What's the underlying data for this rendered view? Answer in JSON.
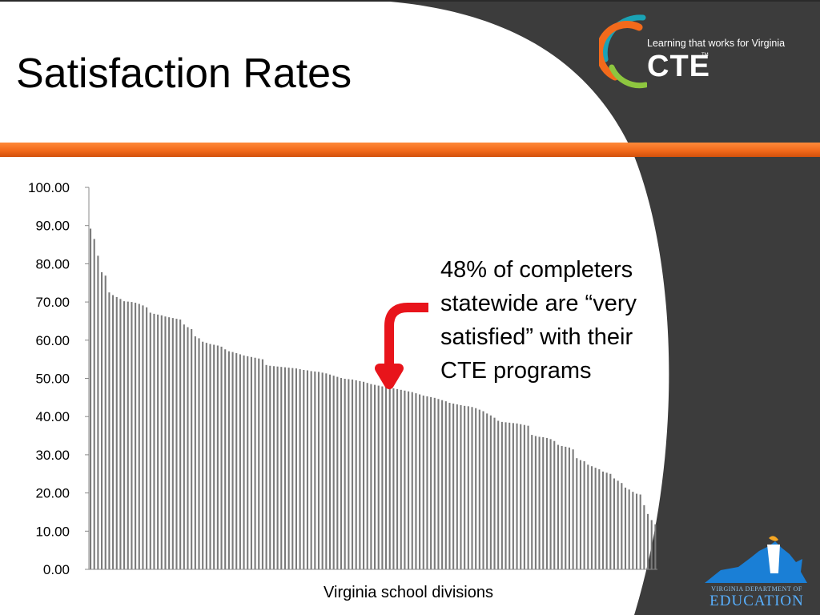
{
  "slide": {
    "title": "Satisfaction Rates",
    "colors": {
      "dark_panel": "#3c3c3c",
      "accent_orange": "#f26a1b",
      "arrow_red": "#e8141b",
      "bar_color": "#7a7a7a"
    }
  },
  "logo": {
    "tagline": "Learning that works for Virginia",
    "wordmark": "CTE",
    "tm": "TM",
    "colors": {
      "teal": "#1aa3b5",
      "orange": "#f26a1b",
      "green": "#8dc63f"
    }
  },
  "annotation": {
    "lines": [
      "48% of completers",
      "statewide are “very",
      "satisfied” with their",
      "CTE programs"
    ]
  },
  "vdoe_logo": {
    "line1": "VIRGINIA DEPARTMENT OF",
    "line2": "EDUCATION",
    "icon": "virginia-map-torch-icon"
  },
  "chart_data": {
    "type": "bar",
    "xlabel": "Virginia school divisions",
    "ylabel": "",
    "ylim": [
      0,
      100
    ],
    "yticks": [
      "0.00",
      "10.00",
      "20.00",
      "30.00",
      "40.00",
      "50.00",
      "60.00",
      "70.00",
      "80.00",
      "90.00",
      "100.00"
    ],
    "grid": false,
    "legend": "none",
    "values": [
      89.2,
      86.5,
      82.1,
      77.8,
      76.9,
      72.5,
      71.8,
      71.3,
      70.8,
      70.2,
      70.1,
      70.0,
      69.8,
      69.5,
      69.1,
      68.6,
      67.2,
      66.9,
      66.7,
      66.5,
      66.2,
      66.0,
      65.8,
      65.6,
      65.4,
      64.1,
      63.4,
      62.9,
      61.0,
      60.5,
      59.6,
      59.3,
      59.0,
      58.8,
      58.6,
      58.3,
      57.6,
      57.1,
      56.9,
      56.6,
      56.3,
      56.0,
      55.8,
      55.6,
      55.4,
      55.2,
      55.0,
      53.5,
      53.3,
      53.2,
      53.1,
      53.0,
      52.9,
      52.8,
      52.7,
      52.6,
      52.4,
      52.2,
      52.1,
      51.9,
      51.8,
      51.7,
      51.5,
      51.3,
      51.0,
      50.7,
      50.4,
      50.1,
      49.9,
      49.8,
      49.7,
      49.5,
      49.3,
      49.1,
      48.8,
      48.5,
      48.3,
      48.1,
      47.9,
      47.7,
      47.5,
      47.4,
      47.2,
      47.0,
      46.8,
      46.6,
      46.4,
      46.1,
      45.8,
      45.5,
      45.3,
      45.1,
      44.9,
      44.6,
      44.3,
      44.0,
      43.6,
      43.4,
      43.2,
      43.0,
      42.8,
      42.7,
      42.5,
      42.2,
      41.8,
      41.4,
      40.8,
      40.3,
      39.7,
      38.9,
      38.6,
      38.5,
      38.4,
      38.3,
      38.2,
      38.0,
      37.8,
      37.6,
      35.2,
      34.9,
      34.7,
      34.6,
      34.4,
      34.1,
      33.6,
      32.6,
      32.3,
      32.1,
      31.9,
      31.4,
      29.1,
      28.6,
      28.3,
      27.4,
      27.0,
      26.6,
      26.2,
      25.6,
      25.3,
      25.0,
      23.8,
      23.2,
      22.6,
      21.4,
      20.9,
      20.3,
      19.8,
      19.6,
      16.8,
      14.5,
      12.9,
      11.8
    ]
  }
}
